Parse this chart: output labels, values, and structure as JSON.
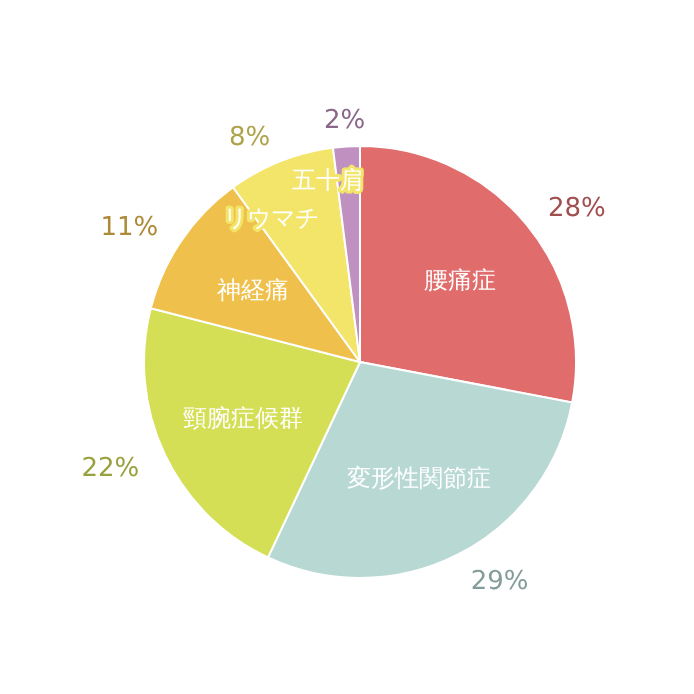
{
  "chart_data": {
    "type": "pie",
    "categories": [
      "腰痛症",
      "変形性関節症",
      "頸腕症候群",
      "神経痛",
      "リウマチ",
      "五十肩"
    ],
    "values": [
      28,
      29,
      22,
      11,
      8,
      2
    ],
    "colors": [
      "#e06c6c",
      "#b8d8d4",
      "#d4df55",
      "#f0c04c",
      "#f3e46a",
      "#c090c0"
    ],
    "value_labels": [
      "28%",
      "29%",
      "22%",
      "11%",
      "8%",
      "2%"
    ]
  }
}
